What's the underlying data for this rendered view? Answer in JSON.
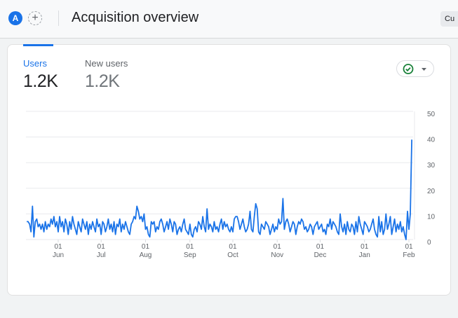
{
  "header": {
    "avatar_letter": "A",
    "add_icon": "+",
    "title": "Acquisition overview",
    "customize_label": "Cu"
  },
  "tabs": [
    {
      "label": "Users",
      "value": "1.2K",
      "active": true
    },
    {
      "label": "New users",
      "value": "1.2K",
      "active": false
    }
  ],
  "compare_button": {
    "icon": "check-circle-icon",
    "dropdown": "caret-down-icon"
  },
  "colors": {
    "accent": "#1a73e8",
    "check": "#188038"
  },
  "chart_data": {
    "type": "line",
    "start_date": "May 10",
    "ylim": [
      0,
      50
    ],
    "y_ticks": [
      "0",
      "10",
      "20",
      "30",
      "40",
      "50"
    ],
    "x_ticks": [
      {
        "day": "01",
        "month": "Jun"
      },
      {
        "day": "01",
        "month": "Jul"
      },
      {
        "day": "01",
        "month": "Aug"
      },
      {
        "day": "01",
        "month": "Sep"
      },
      {
        "day": "01",
        "month": "Oct"
      },
      {
        "day": "01",
        "month": "Nov"
      },
      {
        "day": "01",
        "month": "Dec"
      },
      {
        "day": "01",
        "month": "Jan"
      },
      {
        "day": "01",
        "month": "Feb"
      }
    ],
    "grid": true,
    "series": [
      {
        "values": [
          7,
          7,
          6,
          3,
          13,
          1,
          7,
          8,
          5,
          6,
          4,
          6,
          3,
          7,
          4,
          6,
          5,
          8,
          6,
          9,
          5,
          7,
          3,
          9,
          5,
          7,
          3,
          8,
          6,
          2,
          7,
          4,
          9,
          6,
          4,
          2,
          7,
          5,
          3,
          8,
          6,
          4,
          7,
          2,
          6,
          4,
          7,
          5,
          3,
          8,
          5,
          6,
          2,
          7,
          6,
          3,
          5,
          8,
          4,
          6,
          3,
          7,
          2,
          6,
          5,
          8,
          3,
          6,
          4,
          7,
          5,
          3,
          2,
          6,
          7,
          9,
          8,
          13,
          11,
          8,
          9,
          7,
          10,
          4,
          5,
          2,
          1,
          7,
          6,
          7,
          3,
          5,
          4,
          7,
          8,
          6,
          3,
          5,
          7,
          4,
          8,
          6,
          3,
          7,
          6,
          2,
          4,
          5,
          3,
          6,
          8,
          4,
          3,
          2,
          6,
          2,
          1,
          4,
          5,
          3,
          7,
          6,
          4,
          9,
          5,
          3,
          12,
          4,
          6,
          5,
          3,
          7,
          4,
          5,
          3,
          6,
          8,
          4,
          7,
          5,
          6,
          4,
          3,
          5,
          3,
          8,
          9,
          9,
          7,
          4,
          6,
          8,
          5,
          3,
          4,
          6,
          11,
          4,
          3,
          9,
          14,
          12,
          3,
          2,
          6,
          5,
          4,
          7,
          6,
          5,
          2,
          4,
          6,
          3,
          5,
          4,
          8,
          6,
          7,
          16,
          4,
          7,
          8,
          6,
          3,
          5,
          7,
          6,
          2,
          5,
          7,
          6,
          8,
          7,
          4,
          5,
          3,
          4,
          6,
          5,
          2,
          5,
          6,
          7,
          4,
          5,
          6,
          3,
          4,
          2,
          6,
          5,
          8,
          4,
          7,
          6,
          5,
          3,
          2,
          10,
          5,
          3,
          6,
          2,
          7,
          4,
          3,
          6,
          5,
          2,
          7,
          3,
          9,
          6,
          4,
          2,
          7,
          6,
          5,
          3,
          4,
          6,
          8,
          4,
          2,
          1,
          9,
          3,
          7,
          2,
          4,
          10,
          4,
          6,
          9,
          2,
          5,
          8,
          3,
          6,
          4,
          7,
          3,
          5,
          2,
          0,
          11,
          4,
          10,
          39
        ]
      }
    ]
  }
}
